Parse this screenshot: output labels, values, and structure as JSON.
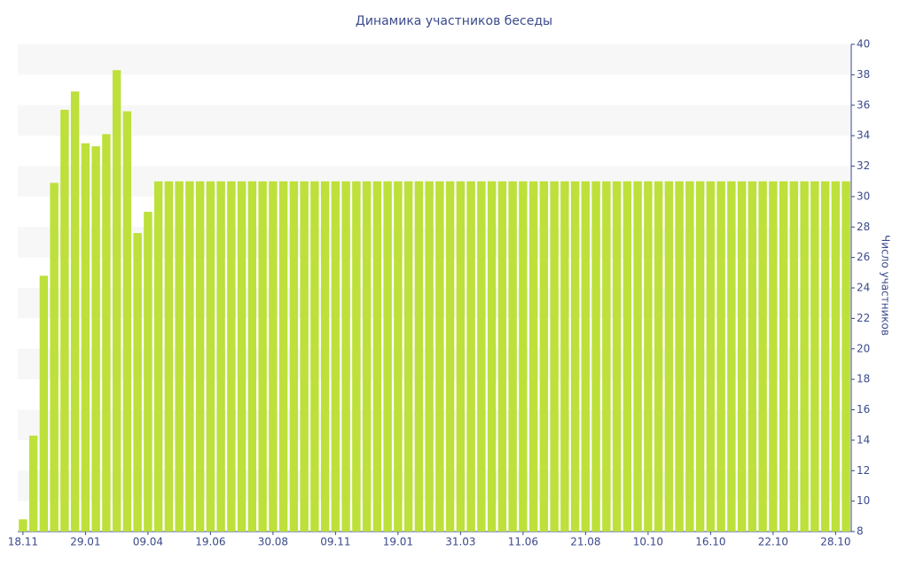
{
  "chart_data": {
    "type": "bar",
    "title": "Динамика участников беседы",
    "y_label": "Число участников",
    "categories": [
      "18.11",
      null,
      null,
      null,
      null,
      null,
      "29.01",
      null,
      null,
      null,
      null,
      null,
      "09.04",
      null,
      null,
      null,
      null,
      null,
      "19.06",
      null,
      null,
      null,
      null,
      null,
      "30.08",
      null,
      null,
      null,
      null,
      null,
      "09.11",
      null,
      null,
      null,
      null,
      null,
      "19.01",
      null,
      null,
      null,
      null,
      null,
      "31.03",
      null,
      null,
      null,
      null,
      null,
      "11.06",
      null,
      null,
      null,
      null,
      null,
      "21.08",
      null,
      null,
      null,
      null,
      null,
      "10.10",
      null,
      null,
      null,
      null,
      null,
      "16.10",
      null,
      null,
      null,
      null,
      null,
      "22.10",
      null,
      null,
      null,
      null,
      null,
      "28.10",
      null
    ],
    "values": [
      8.8,
      14.3,
      24.8,
      30.9,
      35.7,
      36.9,
      33.5,
      33.3,
      34.1,
      38.3,
      35.6,
      27.6,
      29.0,
      31,
      31,
      31,
      31,
      31,
      31,
      31,
      31,
      31,
      31,
      31,
      31,
      31,
      31,
      31,
      31,
      31,
      31,
      31,
      31,
      31,
      31,
      31,
      31,
      31,
      31,
      31,
      31,
      31,
      31,
      31,
      31,
      31,
      31,
      31,
      31,
      31,
      31,
      31,
      31,
      31,
      31,
      31,
      31,
      31,
      31,
      31,
      31,
      31,
      31,
      31,
      31,
      31,
      31,
      31,
      31,
      31,
      31,
      31,
      31,
      31,
      31,
      31,
      31,
      31,
      31,
      31
    ],
    "color": "#bde03a",
    "ylim": [
      8,
      40
    ],
    "yticks": [
      8,
      10,
      12,
      14,
      16,
      18,
      20,
      22,
      24,
      26,
      28,
      30,
      32,
      34,
      36,
      38,
      40
    ],
    "grid": true,
    "y_axis_side": "right"
  }
}
